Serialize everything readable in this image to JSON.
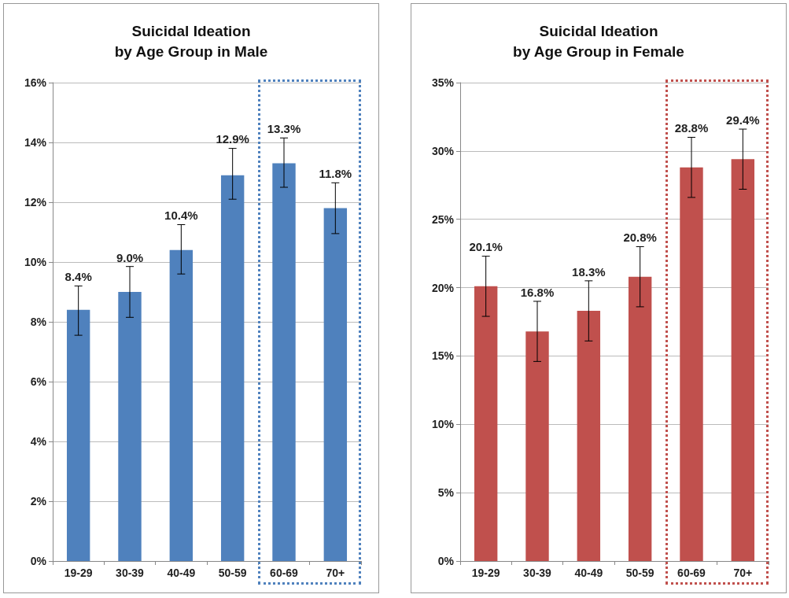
{
  "chart_data": [
    {
      "type": "bar",
      "title": "Suicidal Ideation\nby Age Group in Male",
      "categories": [
        "19-29",
        "30-39",
        "40-49",
        "50-59",
        "60-69",
        "70+"
      ],
      "series": [
        {
          "color": "#4f81bd",
          "values": [
            8.4,
            9.0,
            10.4,
            12.9,
            13.3,
            11.8
          ],
          "value_labels": [
            "8.4%",
            "9.0%",
            "10.4%",
            "12.9%",
            "13.3%",
            "11.8%"
          ],
          "errors": [
            [
              7.55,
              9.2
            ],
            [
              8.15,
              9.85
            ],
            [
              9.6,
              11.25
            ],
            [
              12.1,
              13.8
            ],
            [
              12.5,
              14.15
            ],
            [
              10.95,
              12.65
            ]
          ]
        }
      ],
      "ylim": [
        0,
        16
      ],
      "yticks": [
        {
          "value": 0,
          "label": "0%"
        },
        {
          "value": 2,
          "label": "2%"
        },
        {
          "value": 4,
          "label": "4%"
        },
        {
          "value": 6,
          "label": "6%"
        },
        {
          "value": 8,
          "label": "8%"
        },
        {
          "value": 10,
          "label": "10%"
        },
        {
          "value": 12,
          "label": "12%"
        },
        {
          "value": 14,
          "label": "14%"
        },
        {
          "value": 16,
          "label": "16%"
        }
      ],
      "grid": "y"
    },
    {
      "type": "bar",
      "title": "Suicidal Ideation\nby Age Group in Female",
      "categories": [
        "19-29",
        "30-39",
        "40-49",
        "50-59",
        "60-69",
        "70+"
      ],
      "series": [
        {
          "color": "#c0504d",
          "values": [
            20.1,
            16.8,
            18.3,
            20.8,
            28.8,
            29.4
          ],
          "value_labels": [
            "20.1%",
            "16.8%",
            "18.3%",
            "20.8%",
            "28.8%",
            "29.4%"
          ],
          "errors": [
            [
              17.9,
              22.3
            ],
            [
              14.6,
              19.0
            ],
            [
              16.1,
              20.5
            ],
            [
              18.6,
              23.0
            ],
            [
              26.6,
              31.0
            ],
            [
              27.2,
              31.6
            ]
          ]
        }
      ],
      "ylim": [
        0,
        35
      ],
      "yticks": [
        {
          "value": 0,
          "label": "0%"
        },
        {
          "value": 5,
          "label": "5%"
        },
        {
          "value": 10,
          "label": "10%"
        },
        {
          "value": 15,
          "label": "15%"
        },
        {
          "value": 20,
          "label": "20%"
        },
        {
          "value": 25,
          "label": "25%"
        },
        {
          "value": 30,
          "label": "30%"
        },
        {
          "value": 35,
          "label": "35%"
        }
      ],
      "grid": "y"
    }
  ]
}
